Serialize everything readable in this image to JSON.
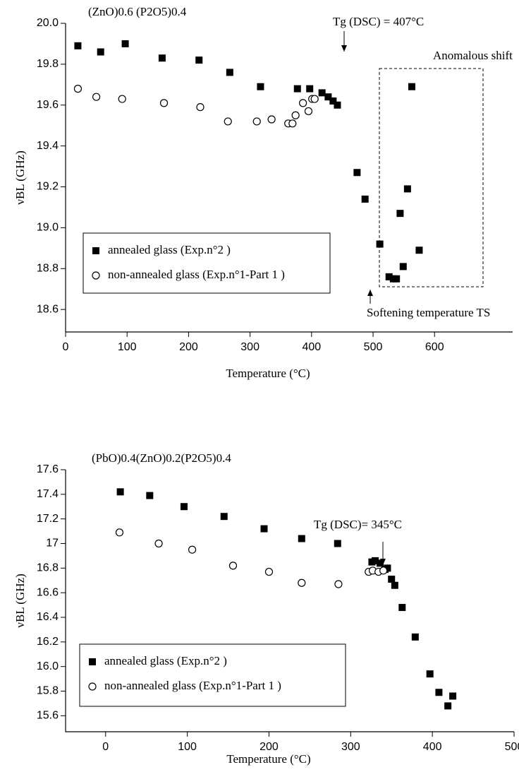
{
  "chart_data": [
    {
      "type": "scatter",
      "title": "(ZnO)0.6 (P2O5)0.4",
      "x_label": "Temperature (°C)",
      "y_label": "νBL (GHz)",
      "xlim": [
        0,
        727
      ],
      "ylim": [
        18.49,
        20.0
      ],
      "xticks": [
        0,
        100,
        200,
        300,
        400,
        500,
        600
      ],
      "yticks": [
        {
          "value": 18.6,
          "label": "18.6"
        },
        {
          "value": 18.8,
          "label": "18.8"
        },
        {
          "value": 19.0,
          "label": "19.0"
        },
        {
          "value": 19.2,
          "label": "19.2"
        },
        {
          "value": 19.4,
          "label": "19.4"
        },
        {
          "value": 19.6,
          "label": "19.6"
        },
        {
          "value": 19.8,
          "label": "19.8"
        },
        {
          "value": 20.0,
          "label": "20.0"
        }
      ],
      "annotations": [
        "Tg (DSC) = 407°C",
        "Anomalous shift",
        "Softening temperature TS"
      ],
      "series": [
        {
          "name": "annealed glass (Exp.n°2 )",
          "marker": "square",
          "color": "#000000",
          "x": [
            20,
            57,
            97,
            157,
            217,
            267,
            317,
            377,
            397,
            417,
            427,
            435,
            442,
            474,
            487,
            511,
            526,
            533,
            538,
            549,
            544,
            556,
            575,
            563
          ],
          "values": [
            19.89,
            19.86,
            19.9,
            19.83,
            19.82,
            19.76,
            19.69,
            19.68,
            19.68,
            19.66,
            19.64,
            19.62,
            19.6,
            19.27,
            19.14,
            18.92,
            18.76,
            18.75,
            18.75,
            18.81,
            19.07,
            19.19,
            18.89,
            19.69
          ]
        },
        {
          "name": "non-annealed glass (Exp.n°1-Part 1 )",
          "marker": "circle",
          "color": "#000000",
          "x": [
            20,
            50,
            92,
            160,
            219,
            264,
            311,
            335,
            362,
            369,
            374,
            386,
            395,
            401,
            405
          ],
          "values": [
            19.68,
            19.64,
            19.63,
            19.61,
            19.59,
            19.52,
            19.52,
            19.53,
            19.51,
            19.51,
            19.55,
            19.61,
            19.57,
            19.63,
            19.63
          ]
        }
      ]
    },
    {
      "type": "scatter",
      "title": "(PbO)0.4(ZnO)0.2(P2O5)0.4",
      "x_label": "Temperature (°C)",
      "y_label": "νBL (GHz)",
      "xlim": [
        -49,
        500
      ],
      "ylim": [
        15.47,
        17.6
      ],
      "xticks": [
        0,
        100,
        200,
        300,
        400,
        500
      ],
      "yticks": [
        {
          "value": 15.6,
          "label": "15.6"
        },
        {
          "value": 15.8,
          "label": "15.8"
        },
        {
          "value": 16.0,
          "label": "16.0"
        },
        {
          "value": 16.2,
          "label": "16.2"
        },
        {
          "value": 16.4,
          "label": "16.4"
        },
        {
          "value": 16.6,
          "label": "16.6"
        },
        {
          "value": 16.8,
          "label": "16.8"
        },
        17,
        {
          "value": 17.2,
          "label": "17.2"
        },
        {
          "value": 17.4,
          "label": "17.4"
        },
        {
          "value": 17.6,
          "label": "17.6"
        }
      ],
      "annotations": [
        "Tg (DSC)= 345°C"
      ],
      "series": [
        {
          "name": "annealed glass (Exp.n°2 )",
          "marker": "square",
          "color": "#000000",
          "x": [
            18,
            54,
            96,
            145,
            194,
            240,
            284,
            326,
            330,
            336,
            342,
            345,
            350,
            354,
            363,
            379,
            397,
            408,
            419,
            425
          ],
          "values": [
            17.42,
            17.39,
            17.3,
            17.22,
            17.12,
            17.04,
            17.0,
            16.85,
            16.86,
            16.84,
            16.79,
            16.8,
            16.71,
            16.66,
            16.48,
            16.24,
            15.94,
            15.79,
            15.68,
            15.76
          ]
        },
        {
          "name": "non-annealed glass (Exp.n°1-Part 1 )",
          "marker": "circle",
          "color": "#000000",
          "x": [
            17,
            65,
            106,
            156,
            200,
            240,
            285,
            322,
            327,
            334,
            340
          ],
          "values": [
            17.09,
            17.0,
            16.95,
            16.82,
            16.77,
            16.68,
            16.67,
            16.77,
            16.78,
            16.77,
            16.78
          ]
        }
      ]
    }
  ]
}
